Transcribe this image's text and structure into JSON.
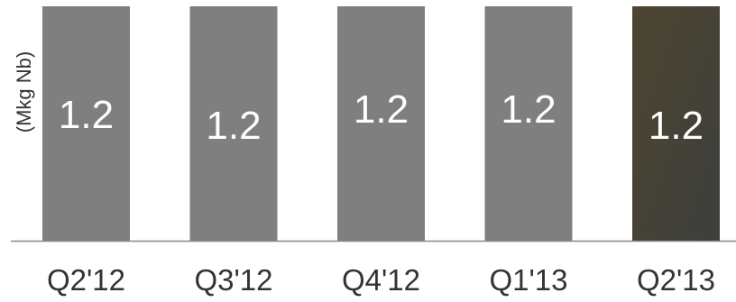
{
  "chart_data": {
    "type": "bar",
    "categories": [
      "Q2'12",
      "Q3'12",
      "Q4'12",
      "Q1'13",
      "Q2'13"
    ],
    "values": [
      1.2,
      1.2,
      1.2,
      1.2,
      1.2
    ],
    "data_labels": [
      "1.2",
      "1.2",
      "1.2",
      "1.2",
      "1.2"
    ],
    "title": "",
    "xlabel": "",
    "ylabel": "(Mkg Nb)",
    "ylim": [
      0,
      1.2
    ],
    "grid": false,
    "legend": "none",
    "colors": {
      "bar": "#7f7f7f",
      "bar_highlight_start": "#4d4530",
      "bar_highlight_end": "#3d3f3d",
      "label": "#ffffff",
      "axis": "#888888",
      "tick_label": "#333333",
      "ylabel": "#333333"
    },
    "highlight_index": 4
  }
}
